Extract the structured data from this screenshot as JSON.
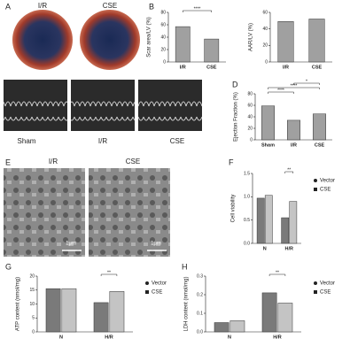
{
  "panels": {
    "A": {
      "label": "A",
      "captions": [
        "I/R",
        "CSE"
      ]
    },
    "C": {
      "label": "C",
      "captions": [
        "Sham",
        "I/R",
        "CSE"
      ]
    },
    "E": {
      "label": "E",
      "captions": [
        "I/R",
        "CSE"
      ],
      "scale_bars": [
        "1μm",
        "1μm"
      ]
    }
  },
  "chart_data": [
    {
      "type": "bar",
      "panel_label": "B",
      "ylabel": "Scar area/LV (%)",
      "categories": [
        "I/R",
        "CSE"
      ],
      "values": [
        57,
        37
      ],
      "color": "#a0a0a0",
      "ylim": [
        0,
        80
      ],
      "yticks": [
        0,
        20,
        40,
        60,
        80
      ],
      "annotations": [
        "****"
      ]
    },
    {
      "type": "bar",
      "ylabel": "AAR/LV (%)",
      "categories": [
        "I/R",
        "CSE"
      ],
      "values": [
        49,
        52
      ],
      "color": "#a0a0a0",
      "ylim": [
        0,
        60
      ],
      "yticks": [
        0,
        20,
        40,
        60
      ]
    },
    {
      "type": "bar",
      "panel_label": "D",
      "ylabel": "Ejection Fraction (%)",
      "categories": [
        "Sham",
        "I/R",
        "CSE"
      ],
      "values": [
        59,
        34,
        45
      ],
      "color": "#a0a0a0",
      "ylim": [
        0,
        80
      ],
      "yticks": [
        0,
        20,
        40,
        60,
        80
      ],
      "annotations": [
        "****",
        "****",
        "*"
      ]
    },
    {
      "type": "bar",
      "panel_label": "F",
      "ylabel": "Cell viability",
      "categories": [
        "N",
        "H/R"
      ],
      "series": [
        {
          "name": "Vector",
          "color": "#7a7a7a",
          "values": [
            0.97,
            0.55
          ]
        },
        {
          "name": "CSE",
          "color": "#c4c4c4",
          "values": [
            1.03,
            0.9
          ]
        }
      ],
      "ylim": [
        0,
        1.5
      ],
      "yticks": [
        {
          "value": 0,
          "label": "0.0"
        },
        {
          "value": 0.5,
          "label": "0.5"
        },
        {
          "value": 1,
          "label": "1.0"
        },
        {
          "value": 1.5,
          "label": "1.5"
        }
      ],
      "legend": "right",
      "annotations": [
        "**"
      ]
    },
    {
      "type": "bar",
      "panel_label": "G",
      "ylabel": "ATP content (nmol/mg)",
      "categories": [
        "N",
        "H/R"
      ],
      "series": [
        {
          "name": "Vector",
          "color": "#7a7a7a",
          "values": [
            15.5,
            10.5
          ]
        },
        {
          "name": "CSE",
          "color": "#c4c4c4",
          "values": [
            15.5,
            14.5
          ]
        }
      ],
      "ylim": [
        0,
        20
      ],
      "yticks": [
        0,
        5,
        10,
        15,
        20
      ],
      "legend": "right",
      "annotations": [
        "**"
      ]
    },
    {
      "type": "bar",
      "panel_label": "H",
      "ylabel": "LDH content (nmol/mg)",
      "categories": [
        "N",
        "H/R"
      ],
      "series": [
        {
          "name": "Vector",
          "color": "#7a7a7a",
          "values": [
            0.05,
            0.21
          ]
        },
        {
          "name": "CSE",
          "color": "#c4c4c4",
          "values": [
            0.06,
            0.155
          ]
        }
      ],
      "ylim": [
        0,
        0.3
      ],
      "yticks": [
        {
          "value": 0,
          "label": "0.0"
        },
        {
          "value": 0.1,
          "label": "0.1"
        },
        {
          "value": 0.2,
          "label": "0.2"
        },
        {
          "value": 0.3,
          "label": "0.3"
        }
      ],
      "legend": "right",
      "annotations": [
        "**"
      ]
    }
  ]
}
